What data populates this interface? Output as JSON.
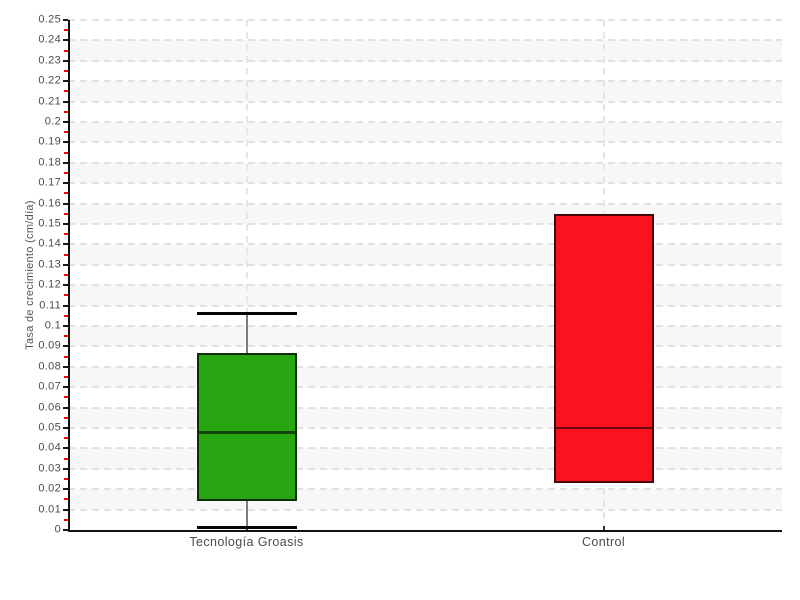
{
  "chart_data": {
    "type": "box",
    "title": "",
    "xlabel": "",
    "ylabel": "Tasa de crecimiento (cm/día)",
    "ylim": [
      0,
      0.25
    ],
    "y_major_step": 0.01,
    "y_minor_step": 0.005,
    "y_tick_labels": [
      "0",
      "0.01",
      "0.02",
      "0.03",
      "0.04",
      "0.05",
      "0.06",
      "0.07",
      "0.08",
      "0.09",
      "0.1",
      "0.11",
      "0.12",
      "0.13",
      "0.14",
      "0.15",
      "0.16",
      "0.17",
      "0.18",
      "0.19",
      "0.2",
      "0.21",
      "0.22",
      "0.23",
      "0.24",
      "0.25"
    ],
    "categories": [
      "Tecnología Groasis",
      "Control"
    ],
    "series": [
      {
        "name": "Tecnología Groasis",
        "color": "#28a612",
        "whisker_low": 0.001,
        "q1": 0.014,
        "median": 0.048,
        "q3": 0.087,
        "whisker_high": 0.106,
        "has_whiskers": true
      },
      {
        "name": "Control",
        "color": "#fc121f",
        "whisker_low": 0.023,
        "q1": 0.023,
        "median": 0.05,
        "q3": 0.155,
        "whisker_high": 0.155,
        "has_whiskers": false
      }
    ],
    "layout_hints": {
      "grid": "horizontal dashed lines every 0.01, vertical dashed line at each category center",
      "alternating_horizontal_bands": true,
      "band_color": "#f7f7f7",
      "legend": "none"
    },
    "colors": {
      "band": "#f7f7f7",
      "grid": "#e2e2e2",
      "axis": "#111111",
      "tick_major": "#1a1a1a",
      "tick_minor": "#ff0000",
      "text": "#4c4c4c",
      "whisker_stem": "#7d7d7d",
      "whisker_cap": "#050505",
      "box_green": "#28a612",
      "box_red": "#fc121f"
    }
  }
}
